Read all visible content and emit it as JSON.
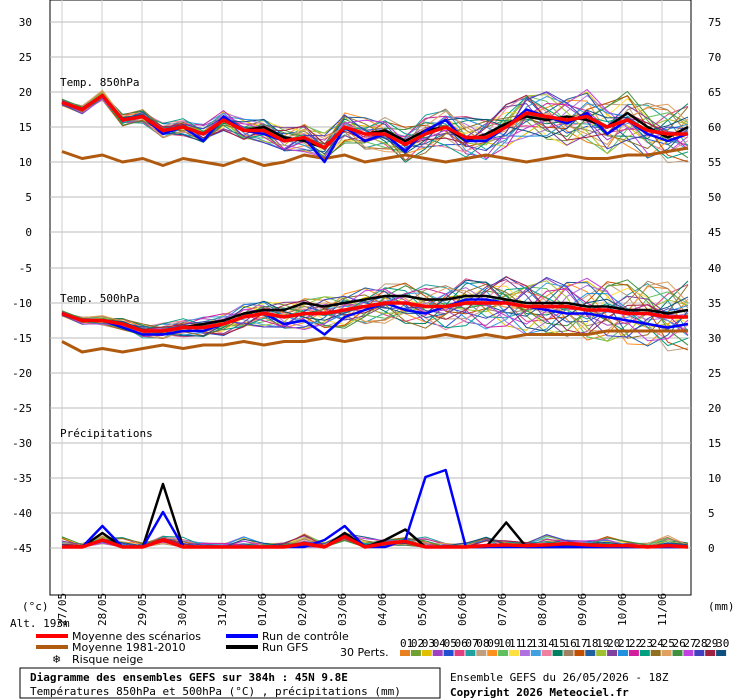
{
  "chart_data": {
    "type": "line",
    "dates": [
      "27/05",
      "28/05",
      "29/05",
      "30/05",
      "31/05",
      "01/06",
      "02/06",
      "03/06",
      "04/06",
      "05/06",
      "06/06",
      "07/06",
      "08/06",
      "09/06",
      "10/06",
      "11/06"
    ],
    "panels": {
      "t850": {
        "label": "Temp. 850hPa",
        "left_ticks": [
          "30",
          "25",
          "20",
          "15",
          "10",
          "5",
          "0"
        ],
        "right_ticks": [
          "75",
          "70",
          "65",
          "60",
          "55",
          "50",
          "45"
        ],
        "ylim": [
          0,
          30
        ],
        "mean": [
          18.5,
          17.5,
          19.5,
          16,
          16.5,
          14.5,
          15,
          14,
          16,
          14.5,
          14.5,
          13,
          13.5,
          12,
          15,
          14,
          14,
          12.5,
          14,
          15,
          13.5,
          13.5,
          15,
          17,
          16.5,
          16,
          16.5,
          15,
          16,
          14.5,
          14,
          14
        ],
        "control": [
          18.5,
          17.5,
          19.5,
          16,
          16.5,
          14,
          15,
          13,
          16.5,
          14.5,
          14,
          13,
          13.5,
          10,
          15,
          13,
          14,
          11.5,
          14.5,
          16,
          13,
          13,
          15,
          17.5,
          16.5,
          15.5,
          17,
          14,
          16,
          14,
          13,
          14
        ],
        "gfs": [
          18.5,
          17.5,
          19.5,
          16,
          16.5,
          14.5,
          15,
          14,
          16,
          14.5,
          15,
          13.5,
          13,
          12,
          15,
          14,
          14.5,
          13,
          14.5,
          15,
          13,
          14,
          15.5,
          16.5,
          16,
          16.5,
          16,
          15,
          17,
          15,
          13.5,
          15
        ],
        "climate": [
          11.5,
          10.5,
          11,
          10,
          10.5,
          9.5,
          10.5,
          10,
          9.5,
          10.5,
          9.5,
          10,
          11,
          10.5,
          11,
          10,
          10.5,
          11,
          10.5,
          10,
          10.5,
          11,
          10.5,
          10,
          10.5,
          11,
          10.5,
          10.5,
          11,
          11,
          11.5,
          12
        ]
      },
      "t500": {
        "label": "Temp. 500hPa",
        "left_ticks": [
          "-5",
          "-10",
          "-15",
          "-20",
          "-25",
          "-30",
          "-35",
          "-40",
          "-45"
        ],
        "right_ticks": [
          "40",
          "35",
          "30",
          "25",
          "20",
          "15",
          "10",
          "5",
          "0"
        ],
        "mean": [
          -11.5,
          -12.5,
          -12.5,
          -13,
          -14,
          -14,
          -13.5,
          -13.5,
          -13,
          -12,
          -11.5,
          -12,
          -11.5,
          -11.5,
          -11,
          -10.5,
          -10,
          -10,
          -10.5,
          -10.5,
          -10,
          -10,
          -10,
          -10.5,
          -10.5,
          -10.5,
          -11,
          -11,
          -11.5,
          -11.5,
          -12,
          -12
        ],
        "control": [
          -11.5,
          -12.5,
          -12.5,
          -13.5,
          -14.5,
          -14.5,
          -14,
          -14,
          -13,
          -12,
          -11.5,
          -13,
          -12.5,
          -14.5,
          -12,
          -11,
          -10,
          -11,
          -11.5,
          -10.5,
          -9.5,
          -9.5,
          -10,
          -10.5,
          -11,
          -11.5,
          -11.5,
          -12,
          -12.5,
          -13,
          -13.5,
          -13
        ],
        "gfs": [
          -11.5,
          -12.5,
          -12.5,
          -13,
          -14,
          -14,
          -13.5,
          -13,
          -12.5,
          -11.5,
          -11,
          -11,
          -10,
          -10.5,
          -10,
          -9.5,
          -9,
          -9,
          -9.5,
          -9.5,
          -9,
          -9,
          -9.5,
          -10,
          -10,
          -10,
          -10.5,
          -10.5,
          -11,
          -11,
          -11.5,
          -11
        ],
        "climate": [
          -15.5,
          -17,
          -16.5,
          -17,
          -16.5,
          -16,
          -16.5,
          -16,
          -16,
          -15.5,
          -16,
          -15.5,
          -15.5,
          -15,
          -15.5,
          -15,
          -15,
          -15,
          -15,
          -14.5,
          -15,
          -14.5,
          -15,
          -14.5,
          -14.5,
          -14.5,
          -14.5,
          -14,
          -14,
          -14,
          -14,
          -14
        ]
      },
      "precip": {
        "label": "Précipitations",
        "right_ticks_mm": [
          "20",
          "15",
          "10",
          "5",
          "0"
        ],
        "mean": [
          0,
          0,
          1,
          0,
          0,
          1,
          0,
          0,
          0,
          0,
          0,
          0,
          0.5,
          0,
          1.5,
          0,
          0.5,
          0.8,
          0,
          0,
          0,
          0.2,
          0.3,
          0.2,
          0.3,
          0.5,
          0.3,
          0.2,
          0.2,
          0,
          0.2,
          0
        ],
        "control": [
          0,
          0,
          3,
          0,
          0,
          5,
          0,
          0,
          0,
          0,
          0,
          0,
          0,
          1,
          3,
          0,
          0,
          1,
          10,
          11,
          0,
          0,
          0,
          0,
          0,
          0,
          0,
          0,
          0,
          0,
          0,
          0
        ],
        "gfs": [
          0,
          0,
          2,
          0,
          0,
          9,
          0,
          0,
          0,
          0,
          0,
          0,
          0.5,
          0,
          2,
          0,
          1,
          2.5,
          0,
          0,
          0,
          0,
          3.5,
          0,
          0,
          0,
          0,
          0,
          0,
          0,
          0,
          0
        ]
      }
    },
    "bottom_labels": {
      "left_unit": "(°c)",
      "right_unit": "(mm)",
      "altitude": "Alt. 193m"
    },
    "legend": {
      "mean": "Moyenne des scénarios",
      "climate": "Moyenne 1981-2010",
      "snow": "Risque neige",
      "control": "Run de contrôle",
      "gfs": "Run GFS",
      "perts_label": "30 Perts.",
      "perts": [
        "01",
        "02",
        "03",
        "04",
        "05",
        "06",
        "07",
        "08",
        "09",
        "10",
        "11",
        "12",
        "13",
        "14",
        "15",
        "16",
        "17",
        "18",
        "19",
        "20",
        "21",
        "22",
        "23",
        "24",
        "25",
        "26",
        "27",
        "28",
        "29",
        "30"
      ]
    },
    "colors": {
      "mean": "#ff0000",
      "climate": "#b05a10",
      "control": "#0000ff",
      "gfs": "#000000",
      "snow": "#55aaff",
      "perts": [
        "#e88020",
        "#70a030",
        "#e0c000",
        "#a040c0",
        "#2050d0",
        "#e04080",
        "#20a0a0",
        "#c0a080",
        "#ff9020",
        "#60c060",
        "#ffe040",
        "#b070e0",
        "#40a0e0",
        "#f080a0",
        "#008060",
        "#a08060",
        "#c05000",
        "#2060a0",
        "#a0c030",
        "#8040a0",
        "#2090e0",
        "#d020a0",
        "#00a080",
        "#907020",
        "#e0a060",
        "#409040",
        "#c040e0",
        "#4040c0",
        "#a02040",
        "#105080"
      ]
    }
  },
  "footer": {
    "title": "Diagramme des ensembles GEFS sur 384h : 45N 9.8E",
    "subtitle": "Températures 850hPa et 500hPa (°C) , précipitations (mm)",
    "run_info": "Ensemble GEFS du 26/05/2026 - 18Z",
    "copyright": "Copyright 2026 Meteociel.fr"
  }
}
